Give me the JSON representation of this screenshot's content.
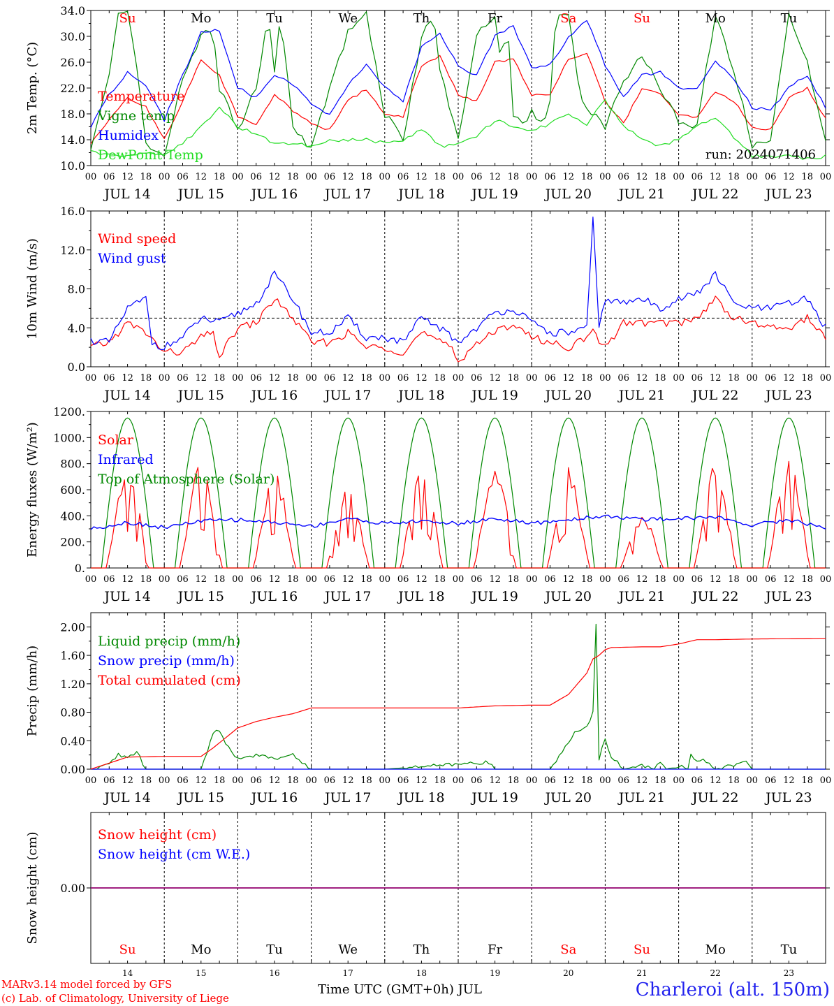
{
  "footer": {
    "model": "MARv3.14 model forced by GFS",
    "lab": "(c) Lab. of Climatology, University of Liege",
    "xaxis_title": "Time UTC (GMT+0h) JUL",
    "station": "Charleroi (alt. 150m)"
  },
  "colors": {
    "red": "#ff0000",
    "green": "#008800",
    "blue": "#0000ff",
    "light_green": "#22dd22",
    "purple": "#800080"
  },
  "chart_data": [
    {
      "id": "temperature",
      "type": "line",
      "ylabel": "2m Temp. (°C)",
      "ylim": [
        10,
        34
      ],
      "yticks": [
        "10.0",
        "14.0",
        "18.0",
        "22.0",
        "26.0",
        "30.0",
        "34.0"
      ],
      "xlim_hours": [
        0,
        240
      ],
      "hour_ticks": [
        "00",
        "06",
        "12",
        "18"
      ],
      "date_labels": [
        "JUL 14",
        "JUL 15",
        "JUL 16",
        "JUL 17",
        "JUL 18",
        "JUL 19",
        "JUL 20",
        "JUL 21",
        "JUL 22",
        "JUL 23"
      ],
      "weekday_labels": [
        {
          "text": "Su",
          "color": "#ff0000"
        },
        {
          "text": "Mo",
          "color": "#000000"
        },
        {
          "text": "Tu",
          "color": "#000000"
        },
        {
          "text": "We",
          "color": "#000000"
        },
        {
          "text": "Th",
          "color": "#000000"
        },
        {
          "text": "Fr",
          "color": "#000000"
        },
        {
          "text": "Sa",
          "color": "#ff0000"
        },
        {
          "text": "Su",
          "color": "#ff0000"
        },
        {
          "text": "Mo",
          "color": "#000000"
        },
        {
          "text": "Tu",
          "color": "#000000"
        }
      ],
      "annotation": "run: 2024071406",
      "series": [
        {
          "name": "Temperature",
          "color": "#ff0000",
          "x": [
            0,
            6,
            12,
            18,
            24,
            30,
            36,
            42,
            48,
            54,
            60,
            66,
            72,
            78,
            84,
            90,
            96,
            102,
            108,
            114,
            120,
            126,
            132,
            138,
            144,
            150,
            156,
            162,
            168,
            174,
            180,
            186,
            192,
            198,
            204,
            210,
            216,
            222,
            228,
            234,
            240
          ],
          "y": [
            13.5,
            17.0,
            20.5,
            19.0,
            14.0,
            20.0,
            26.3,
            24.0,
            17.5,
            16.5,
            21.0,
            18.5,
            16.5,
            15.5,
            20.0,
            21.8,
            18.0,
            17.5,
            25.5,
            27.0,
            21.0,
            20.0,
            26.0,
            26.5,
            21.0,
            21.0,
            26.5,
            27.5,
            20.0,
            16.5,
            22.0,
            21.0,
            17.8,
            17.5,
            21.5,
            20.0,
            16.0,
            15.5,
            20.5,
            22.0,
            17.2
          ]
        },
        {
          "name": "Vigne temp",
          "color": "#008800",
          "x": [
            0,
            6,
            9,
            12,
            15,
            18,
            24,
            30,
            36,
            40,
            42,
            48,
            54,
            58,
            60,
            62,
            66,
            72,
            78,
            84,
            90,
            96,
            102,
            108,
            112,
            114,
            120,
            126,
            132,
            134,
            136,
            138,
            142,
            144,
            148,
            150,
            152,
            156,
            160,
            162,
            168,
            174,
            180,
            186,
            192,
            198,
            204,
            210,
            216,
            222,
            228,
            234,
            240
          ],
          "y": [
            13.0,
            24.0,
            33.5,
            33.5,
            25.0,
            13.0,
            11.5,
            24.0,
            30.0,
            31.0,
            22.0,
            15.5,
            22.0,
            33.5,
            24.0,
            33.5,
            16.0,
            12.5,
            22.0,
            30.5,
            33.5,
            18.0,
            14.0,
            30.0,
            33.5,
            25.0,
            14.0,
            30.0,
            33.5,
            25.0,
            33.5,
            18.0,
            16.0,
            18.5,
            16.0,
            20.0,
            33.5,
            33.5,
            20.0,
            19.0,
            16.0,
            23.0,
            27.0,
            22.0,
            17.0,
            16.0,
            33.5,
            25.0,
            13.0,
            14.0,
            33.5,
            26.0,
            13.5
          ]
        },
        {
          "name": "Humidex",
          "color": "#0000ff",
          "x": [
            0,
            6,
            12,
            18,
            24,
            30,
            36,
            42,
            48,
            54,
            60,
            66,
            72,
            78,
            84,
            90,
            96,
            102,
            108,
            114,
            120,
            126,
            132,
            138,
            144,
            150,
            156,
            162,
            168,
            174,
            180,
            186,
            192,
            198,
            204,
            210,
            216,
            222,
            228,
            234,
            240
          ],
          "y": [
            16.0,
            21.0,
            24.5,
            22.5,
            17.0,
            24.0,
            30.5,
            31.0,
            22.0,
            20.5,
            24.0,
            22.5,
            19.5,
            18.0,
            22.5,
            25.5,
            22.0,
            20.0,
            28.5,
            30.5,
            25.5,
            24.0,
            30.0,
            31.5,
            25.0,
            25.5,
            30.0,
            32.5,
            25.5,
            20.5,
            24.0,
            24.5,
            22.0,
            22.0,
            26.0,
            23.5,
            19.0,
            18.5,
            22.0,
            24.0,
            19.0
          ]
        },
        {
          "name": "DewPoint Temp",
          "color": "#22dd22",
          "x": [
            0,
            6,
            12,
            18,
            24,
            30,
            36,
            42,
            48,
            54,
            60,
            66,
            72,
            78,
            84,
            90,
            96,
            102,
            108,
            114,
            120,
            126,
            132,
            138,
            144,
            150,
            156,
            162,
            168,
            174,
            180,
            186,
            192,
            198,
            204,
            210,
            216,
            222,
            228,
            234,
            240
          ],
          "y": [
            12.5,
            11.5,
            11.5,
            12.0,
            11.5,
            13.5,
            16.0,
            19.0,
            16.0,
            15.0,
            13.5,
            13.5,
            13.0,
            14.0,
            14.0,
            14.0,
            13.5,
            14.0,
            15.5,
            13.0,
            13.5,
            14.5,
            17.0,
            16.0,
            15.5,
            16.5,
            18.0,
            16.5,
            20.0,
            16.0,
            14.0,
            13.0,
            14.0,
            16.0,
            17.5,
            14.5,
            11.5,
            11.5,
            11.5,
            11.0,
            11.5
          ]
        }
      ]
    },
    {
      "id": "wind",
      "type": "line",
      "ylabel": "10m Wind (m/s)",
      "ylim": [
        0,
        16
      ],
      "yticks": [
        "0.0",
        "4.0",
        "8.0",
        "12.0",
        "16.0"
      ],
      "xlim_hours": [
        0,
        240
      ],
      "date_labels": [
        "JUL 14",
        "JUL 15",
        "JUL 16",
        "JUL 17",
        "JUL 18",
        "JUL 19",
        "JUL 20",
        "JUL 21",
        "JUL 22",
        "JUL 23"
      ],
      "reference_line": 5.0,
      "series": [
        {
          "name": "Wind speed",
          "color": "#ff0000",
          "x": [
            0,
            6,
            12,
            18,
            24,
            30,
            36,
            40,
            42,
            48,
            54,
            60,
            66,
            72,
            78,
            84,
            90,
            96,
            102,
            108,
            114,
            118,
            120,
            126,
            132,
            138,
            144,
            150,
            156,
            162,
            164,
            168,
            174,
            180,
            186,
            192,
            198,
            204,
            210,
            216,
            222,
            228,
            234,
            240
          ],
          "y": [
            2.0,
            2.5,
            4.5,
            3.5,
            1.5,
            1.5,
            3.0,
            3.5,
            1.0,
            4.0,
            4.5,
            7.0,
            5.0,
            2.5,
            2.5,
            3.5,
            2.0,
            2.0,
            1.5,
            3.5,
            2.5,
            2.0,
            0.5,
            2.5,
            3.5,
            4.5,
            3.0,
            2.5,
            2.0,
            3.0,
            3.5,
            2.0,
            4.5,
            4.5,
            4.5,
            4.5,
            5.0,
            7.0,
            5.0,
            4.5,
            4.0,
            4.0,
            5.0,
            3.0
          ]
        },
        {
          "name": "Wind gust",
          "color": "#0000ff",
          "x": [
            0,
            6,
            12,
            18,
            20,
            24,
            30,
            36,
            42,
            48,
            54,
            60,
            66,
            72,
            78,
            84,
            90,
            96,
            102,
            108,
            114,
            120,
            126,
            132,
            138,
            144,
            150,
            156,
            162,
            164,
            166,
            168,
            174,
            180,
            186,
            192,
            198,
            204,
            210,
            216,
            222,
            228,
            234,
            240
          ],
          "y": [
            2.7,
            2.5,
            6.0,
            7.0,
            2.5,
            2.0,
            3.0,
            5.0,
            4.5,
            5.5,
            6.5,
            9.5,
            7.0,
            3.5,
            3.5,
            5.0,
            3.0,
            3.0,
            2.5,
            5.0,
            4.0,
            2.5,
            4.0,
            5.5,
            6.0,
            4.5,
            3.5,
            3.5,
            4.0,
            15.0,
            4.0,
            7.0,
            6.5,
            7.0,
            6.0,
            7.0,
            7.5,
            9.5,
            6.5,
            6.0,
            6.0,
            6.5,
            7.0,
            4.0
          ]
        }
      ]
    },
    {
      "id": "energy",
      "type": "line",
      "ylabel": "Energy fluxes (W/m²)",
      "ylim": [
        0,
        1200
      ],
      "yticks": [
        "0.",
        "200.",
        "400.",
        "600.",
        "800.",
        "1000.",
        "1200."
      ],
      "xlim_hours": [
        0,
        240
      ],
      "date_labels": [
        "JUL 14",
        "JUL 15",
        "JUL 16",
        "JUL 17",
        "JUL 18",
        "JUL 19",
        "JUL 20",
        "JUL 21",
        "JUL 22",
        "JUL 23"
      ],
      "series": [
        {
          "name": "Solar",
          "color": "#ff0000",
          "day_peaks": [
            800,
            850,
            750,
            660,
            850,
            840,
            770,
            420,
            810,
            870
          ]
        },
        {
          "name": "Infrared",
          "color": "#0000ff",
          "x": [
            0,
            12,
            24,
            36,
            48,
            60,
            72,
            84,
            96,
            108,
            120,
            132,
            144,
            156,
            168,
            180,
            192,
            204,
            216,
            228,
            240
          ],
          "y": [
            300,
            350,
            310,
            360,
            370,
            350,
            320,
            380,
            340,
            360,
            340,
            380,
            340,
            370,
            400,
            370,
            380,
            390,
            330,
            370,
            310
          ]
        },
        {
          "name": "Top of Atmosphere (Solar)",
          "color": "#008800",
          "peak": 1150,
          "sunrise_hour": 3.5,
          "sunset_hour": 20.5
        }
      ]
    },
    {
      "id": "precip",
      "type": "line",
      "ylabel": "Precip (mm/h)",
      "ylim": [
        0,
        2.2
      ],
      "yticks": [
        "0.00",
        "0.40",
        "0.80",
        "1.20",
        "1.60",
        "2.00"
      ],
      "xlim_hours": [
        0,
        240
      ],
      "date_labels": [
        "JUL 14",
        "JUL 15",
        "JUL 16",
        "JUL 17",
        "JUL 18",
        "JUL 19",
        "JUL 20",
        "JUL 21",
        "JUL 22",
        "JUL 23"
      ],
      "series": [
        {
          "name": "Liquid precip (mm/h)",
          "color": "#008800",
          "x": [
            0,
            2,
            6,
            9,
            12,
            15,
            18,
            24,
            36,
            40,
            42,
            44,
            48,
            54,
            60,
            66,
            72,
            78,
            96,
            130,
            132,
            150,
            158,
            160,
            162,
            164,
            165,
            166,
            168,
            170,
            172,
            174,
            180,
            184,
            186,
            188,
            192,
            195,
            196,
            198,
            200,
            204,
            214,
            216,
            240
          ],
          "y": [
            0,
            0,
            0.1,
            0.2,
            0.15,
            0.25,
            0,
            0,
            0,
            0.5,
            0.55,
            0.35,
            0.15,
            0.2,
            0.15,
            0.2,
            0,
            0,
            0,
            0.1,
            0,
            0,
            0.5,
            0.55,
            0.6,
            0.8,
            2.02,
            0.15,
            0.45,
            0.15,
            0.1,
            0,
            0.05,
            0,
            0.1,
            0,
            0.05,
            0,
            0.2,
            0.1,
            0.15,
            0,
            0.1,
            0,
            0
          ]
        },
        {
          "name": "Snow precip (mm/h)",
          "color": "#0000ff",
          "x": [
            0,
            240
          ],
          "y": [
            0,
            0
          ]
        },
        {
          "name": "Total cumulated (cm)",
          "color": "#ff0000",
          "x": [
            0,
            12,
            24,
            36,
            40,
            48,
            54,
            60,
            66,
            72,
            84,
            96,
            120,
            132,
            144,
            150,
            156,
            162,
            164,
            166,
            168,
            170,
            180,
            186,
            192,
            198,
            204,
            216,
            240
          ],
          "y": [
            0,
            0.17,
            0.18,
            0.18,
            0.3,
            0.58,
            0.67,
            0.73,
            0.78,
            0.86,
            0.86,
            0.86,
            0.86,
            0.89,
            0.9,
            0.9,
            1.05,
            1.35,
            1.55,
            1.6,
            1.68,
            1.71,
            1.72,
            1.72,
            1.76,
            1.82,
            1.82,
            1.83,
            1.84
          ]
        }
      ]
    },
    {
      "id": "snow",
      "type": "line",
      "ylabel": "Snow height (cm)",
      "ylim": [
        -1,
        1
      ],
      "yticks": [
        "0.00"
      ],
      "xlim_hours": [
        0,
        240
      ],
      "day_numbers": [
        "14",
        "15",
        "16",
        "17",
        "18",
        "19",
        "20",
        "21",
        "22",
        "23"
      ],
      "series": [
        {
          "name": "Snow height (cm)",
          "color": "#ff0000",
          "x": [
            0,
            240
          ],
          "y": [
            0,
            0
          ]
        },
        {
          "name": "Snow height (cm W.E.)",
          "color": "#0000ff",
          "x": [
            0,
            240
          ],
          "y": [
            0,
            0
          ]
        }
      ]
    }
  ]
}
